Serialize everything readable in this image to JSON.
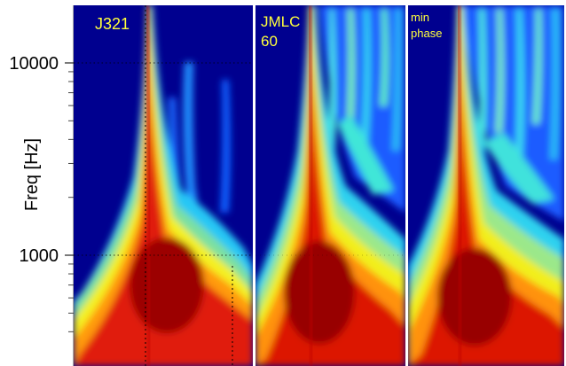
{
  "chart_data": {
    "type": "heatmap",
    "colormap": "jet",
    "ylabel": "Freq [Hz]",
    "yscale": "log",
    "ylim": [
      300,
      20000
    ],
    "y_ticks_labeled": [
      {
        "value": 1000,
        "label": "1000"
      },
      {
        "value": 10000,
        "label": "10000"
      }
    ],
    "y_ticks_minor": [
      400,
      500,
      600,
      700,
      800,
      900,
      2000,
      3000,
      4000,
      5000,
      6000,
      7000,
      8000,
      9000,
      20000
    ],
    "grid": "dotted at 1000 Hz and 10000 Hz, plus two vertical time lines",
    "panels": [
      {
        "label": "J321",
        "description": "narrow ridge, sparse upper-band streaks"
      },
      {
        "label": "JMLC\n60",
        "description": "ridge with dense high-frequency streaks on the right"
      },
      {
        "label": "min\nphase",
        "description": "ridge with broad energy spread and dense upper streaks"
      }
    ]
  },
  "colors": {
    "background_low": "#00008f",
    "label_text": "#ffff3c",
    "axis_text": "#000000",
    "panel_gap": "#ffffff"
  }
}
